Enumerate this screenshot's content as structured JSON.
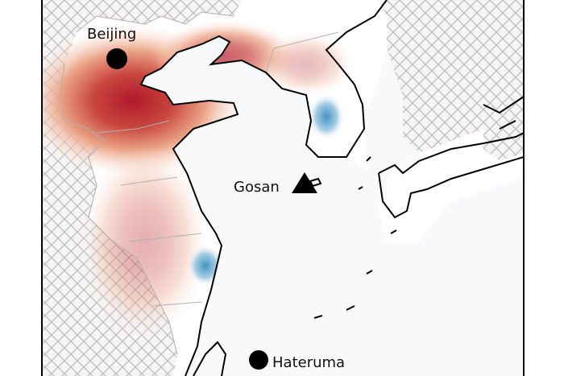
{
  "map": {
    "stations": [
      {
        "name": "Beijing",
        "marker": "circle"
      },
      {
        "name": "Gosan",
        "marker": "triangle"
      },
      {
        "name": "Hateruma",
        "marker": "circle"
      }
    ],
    "colors": {
      "positive": "#b2182b",
      "negative": "#4393c3",
      "masked_hatch": "#c8c8c8",
      "coastline": "#000000",
      "border": "#b0b0b0"
    }
  }
}
